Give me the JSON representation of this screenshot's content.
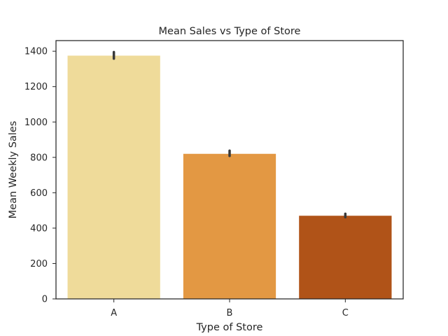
{
  "chart_data": {
    "type": "bar",
    "title": "Mean Sales vs Type of Store",
    "xlabel": "Type of Store",
    "ylabel": "Mean Weekly Sales",
    "categories": [
      "A",
      "B",
      "C"
    ],
    "values": [
      1375,
      820,
      470
    ],
    "error_bars": [
      [
        1358,
        1395
      ],
      [
        808,
        838
      ],
      [
        462,
        481
      ]
    ],
    "colors": [
      "#efdb9a",
      "#e39843",
      "#b05318"
    ],
    "error_bar_color": "#3a3a3a",
    "ylim": [
      0,
      1460
    ],
    "yticks": [
      0,
      200,
      400,
      600,
      800,
      1000,
      1200,
      1400
    ],
    "grid": false
  }
}
